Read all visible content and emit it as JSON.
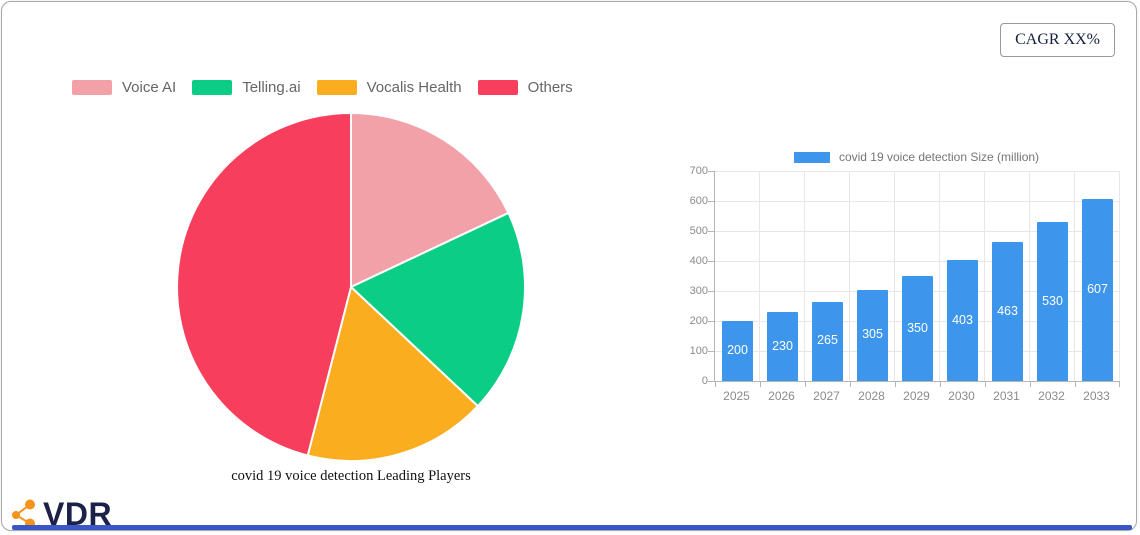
{
  "header": {
    "cagr_label": "CAGR XX%"
  },
  "footer": {
    "brand": "VDR",
    "accent_bar_color": "#3b57c7",
    "brand_icon_color": "#f5941d",
    "brand_text_color": "#1b2147"
  },
  "chart_data": [
    {
      "type": "pie",
      "title": "covid 19 voice detection Leading Players",
      "legend_position": "top",
      "start_angle_deg": 0,
      "direction": "clockwise",
      "slices": [
        {
          "label": "Voice AI",
          "percent": 18,
          "color": "#f3a1a8"
        },
        {
          "label": "Telling.ai",
          "percent": 19,
          "color": "#0bcd85"
        },
        {
          "label": "Vocalis Health",
          "percent": 17,
          "color": "#fbad20"
        },
        {
          "label": "Others",
          "percent": 46,
          "color": "#f83e5d"
        }
      ]
    },
    {
      "type": "bar",
      "legend": "covid 19 voice detection Size (million)",
      "categories": [
        "2025",
        "2026",
        "2027",
        "2028",
        "2029",
        "2030",
        "2031",
        "2032",
        "2033"
      ],
      "values": [
        200,
        230,
        265,
        305,
        350,
        403,
        463,
        530,
        607
      ],
      "bar_color": "#3d96ec",
      "ylim": [
        0,
        700
      ],
      "ytick_step": 100,
      "grid": true,
      "value_label_style": "inside-center-white"
    }
  ]
}
